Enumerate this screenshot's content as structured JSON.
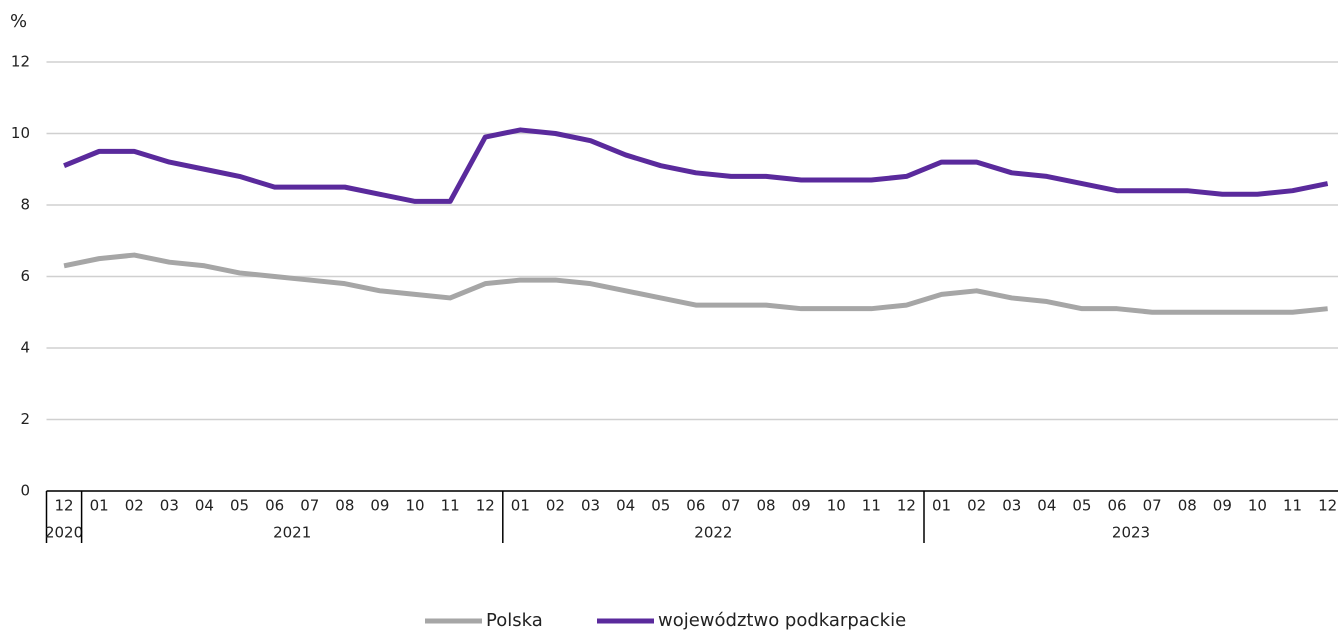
{
  "chart_data": {
    "type": "line",
    "y_label": "%",
    "categories": [
      {
        "month": "12",
        "year": "2020"
      },
      {
        "month": "01",
        "year": "2021"
      },
      {
        "month": "02",
        "year": "2021"
      },
      {
        "month": "03",
        "year": "2021"
      },
      {
        "month": "04",
        "year": "2021"
      },
      {
        "month": "05",
        "year": "2021"
      },
      {
        "month": "06",
        "year": "2021"
      },
      {
        "month": "07",
        "year": "2021"
      },
      {
        "month": "08",
        "year": "2021"
      },
      {
        "month": "09",
        "year": "2021"
      },
      {
        "month": "10",
        "year": "2021"
      },
      {
        "month": "11",
        "year": "2021"
      },
      {
        "month": "12",
        "year": "2021"
      },
      {
        "month": "01",
        "year": "2022"
      },
      {
        "month": "02",
        "year": "2022"
      },
      {
        "month": "03",
        "year": "2022"
      },
      {
        "month": "04",
        "year": "2022"
      },
      {
        "month": "05",
        "year": "2022"
      },
      {
        "month": "06",
        "year": "2022"
      },
      {
        "month": "07",
        "year": "2022"
      },
      {
        "month": "08",
        "year": "2022"
      },
      {
        "month": "09",
        "year": "2022"
      },
      {
        "month": "10",
        "year": "2022"
      },
      {
        "month": "11",
        "year": "2022"
      },
      {
        "month": "12",
        "year": "2022"
      },
      {
        "month": "01",
        "year": "2023"
      },
      {
        "month": "02",
        "year": "2023"
      },
      {
        "month": "03",
        "year": "2023"
      },
      {
        "month": "04",
        "year": "2023"
      },
      {
        "month": "05",
        "year": "2023"
      },
      {
        "month": "06",
        "year": "2023"
      },
      {
        "month": "07",
        "year": "2023"
      },
      {
        "month": "08",
        "year": "2023"
      },
      {
        "month": "09",
        "year": "2023"
      },
      {
        "month": "10",
        "year": "2023"
      },
      {
        "month": "11",
        "year": "2023"
      },
      {
        "month": "12",
        "year": "2023"
      }
    ],
    "series": [
      {
        "name": "Polska",
        "color": "#a6a6a6",
        "values": [
          6.3,
          6.5,
          6.6,
          6.4,
          6.3,
          6.1,
          6.0,
          5.9,
          5.8,
          5.6,
          5.5,
          5.4,
          5.8,
          5.9,
          5.9,
          5.8,
          5.6,
          5.4,
          5.2,
          5.2,
          5.2,
          5.1,
          5.1,
          5.1,
          5.2,
          5.5,
          5.6,
          5.4,
          5.3,
          5.1,
          5.1,
          5.0,
          5.0,
          5.0,
          5.0,
          5.0,
          5.1
        ]
      },
      {
        "name": "województwo podkarpackie",
        "color": "#5a2a9c",
        "values": [
          9.1,
          9.5,
          9.5,
          9.2,
          9.0,
          8.8,
          8.5,
          8.5,
          8.5,
          8.3,
          8.1,
          8.1,
          9.9,
          10.1,
          10.0,
          9.8,
          9.4,
          9.1,
          8.9,
          8.8,
          8.8,
          8.7,
          8.7,
          8.7,
          8.8,
          9.2,
          9.2,
          8.9,
          8.8,
          8.6,
          8.4,
          8.4,
          8.4,
          8.3,
          8.3,
          8.4,
          8.6
        ]
      }
    ],
    "ylim": [
      0,
      12
    ],
    "yticks": [
      0,
      2,
      4,
      6,
      8,
      10,
      12
    ],
    "grid": true,
    "legend": "bottom"
  }
}
